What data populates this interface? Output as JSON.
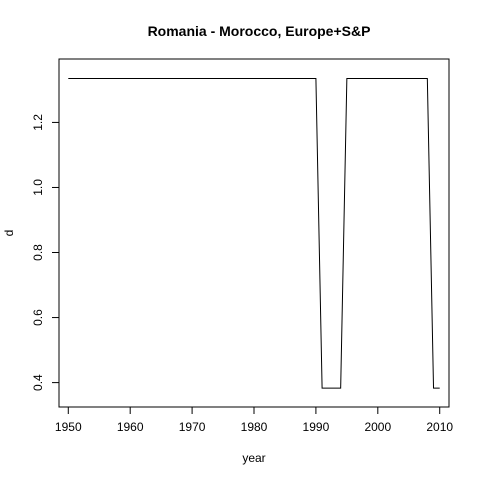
{
  "chart_data": {
    "type": "line",
    "title": "Romania - Morocco, Europe+S&P",
    "xlabel": "year",
    "ylabel": "d",
    "xlim": [
      1948.5,
      2011.5
    ],
    "ylim": [
      0.325,
      1.395
    ],
    "xticks": [
      1950,
      1960,
      1970,
      1980,
      1990,
      2000,
      2010
    ],
    "yticks": [
      0.4,
      0.6,
      0.8,
      1.0,
      1.2
    ],
    "ytick_labels": [
      "0.4",
      "0.6",
      "0.8",
      "1.0",
      "1.2"
    ],
    "grid": false,
    "legend": "none",
    "series": [
      {
        "color": "#000000",
        "x": [
          1950,
          1990,
          1991,
          1994,
          1995,
          2008,
          2009,
          2010
        ],
        "y": [
          1.335,
          1.335,
          0.383,
          0.383,
          1.335,
          1.335,
          0.383,
          0.383
        ]
      }
    ]
  }
}
